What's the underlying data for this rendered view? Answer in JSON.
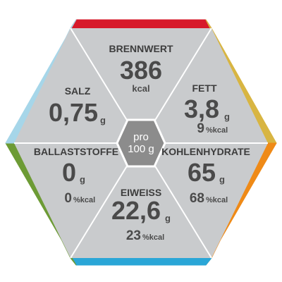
{
  "colors": {
    "panel": "#c9cbcd",
    "divider": "#ffffff",
    "center": "#8c8c8c",
    "brennwert": "#d7192a",
    "fett": "#d8b542",
    "kohlenhydrate": "#ef8a17",
    "eiweiss": "#2aa6d7",
    "ballaststoffe": "#6d9b35",
    "salz": "#a6d6e9"
  },
  "center": {
    "line1": "pro",
    "line2": "100 g"
  },
  "segments": {
    "brennwert": {
      "label": "BRENNWERT",
      "value": "386",
      "unit": "kcal"
    },
    "fett": {
      "label": "FETT",
      "value": "3,8",
      "unit": "g",
      "pct": "9",
      "pct_unit": "%kcal"
    },
    "kohlenhydrate": {
      "label": "KOHLENHYDRATE",
      "value": "65",
      "unit": "g",
      "pct": "68",
      "pct_unit": "%kcal"
    },
    "eiweiss": {
      "label": "EIWEISS",
      "value": "22,6",
      "unit": "g",
      "pct": "23",
      "pct_unit": "%kcal"
    },
    "ballaststoffe": {
      "label": "BALLASTSTOFFE",
      "value": "0",
      "unit": "g",
      "pct": "0",
      "pct_unit": "%kcal"
    },
    "salz": {
      "label": "SALZ",
      "value": "0,75",
      "unit": "g"
    }
  }
}
